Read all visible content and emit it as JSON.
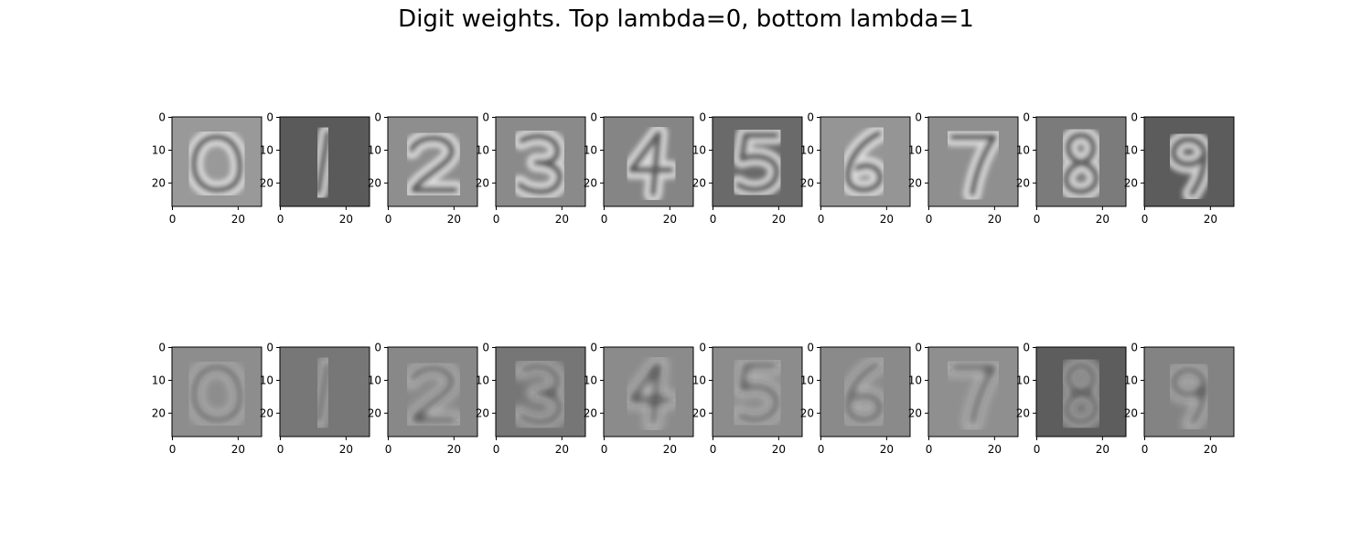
{
  "title": "Digit weights. Top lambda=0, bottom lambda=1",
  "chart_data": {
    "type": "heatmap",
    "title": "Digit weights. Top lambda=0, bottom lambda=1",
    "colormap": "gray",
    "image_size": [
      28,
      28
    ],
    "xlim": [
      0,
      27
    ],
    "ylim": [
      27,
      0
    ],
    "x_ticks": [
      0,
      20
    ],
    "y_ticks": [
      0,
      10,
      20
    ],
    "grid": false,
    "rows": [
      {
        "row": 0,
        "lambda": 0,
        "panels": [
          {
            "digit": 0,
            "background": "#999999"
          },
          {
            "digit": 1,
            "background": "#5a5a5a"
          },
          {
            "digit": 2,
            "background": "#8e8e8e"
          },
          {
            "digit": 3,
            "background": "#8a8a8a"
          },
          {
            "digit": 4,
            "background": "#858585"
          },
          {
            "digit": 5,
            "background": "#6a6a6a"
          },
          {
            "digit": 6,
            "background": "#959595"
          },
          {
            "digit": 7,
            "background": "#8f8f8f"
          },
          {
            "digit": 8,
            "background": "#7b7b7b"
          },
          {
            "digit": 9,
            "background": "#5c5c5c"
          }
        ]
      },
      {
        "row": 1,
        "lambda": 1,
        "panels": [
          {
            "digit": 0,
            "background": "#8d8d8d"
          },
          {
            "digit": 1,
            "background": "#777777"
          },
          {
            "digit": 2,
            "background": "#888888"
          },
          {
            "digit": 3,
            "background": "#767676"
          },
          {
            "digit": 4,
            "background": "#8b8b8b"
          },
          {
            "digit": 5,
            "background": "#8c8c8c"
          },
          {
            "digit": 6,
            "background": "#8a8a8a"
          },
          {
            "digit": 7,
            "background": "#8f8f8f"
          },
          {
            "digit": 8,
            "background": "#5d5d5d"
          },
          {
            "digit": 9,
            "background": "#838383"
          }
        ]
      }
    ]
  }
}
